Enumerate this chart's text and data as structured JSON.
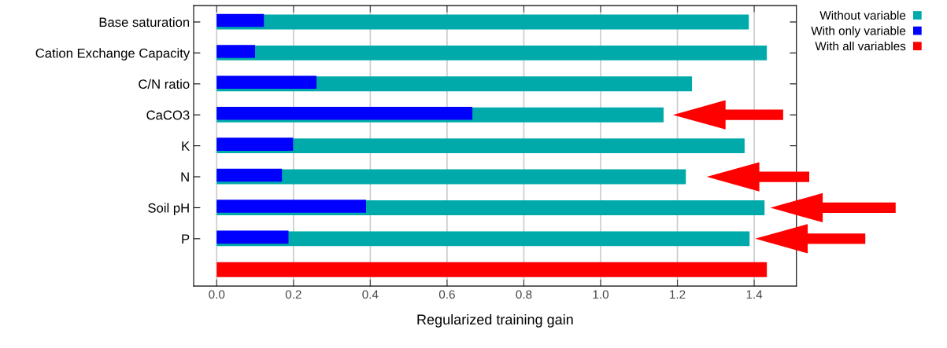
{
  "chart_data": {
    "type": "bar",
    "orientation": "horizontal",
    "xlabel": "Regularized training gain",
    "categories": [
      "Base saturation",
      "Cation Exchange Capacity",
      "C/N ratio",
      "CaCO3",
      "K",
      "N",
      "Soil pH",
      "P",
      null
    ],
    "series": [
      {
        "name": "Without variable",
        "color": "#00aaaa",
        "values": [
          1.386,
          1.433,
          1.238,
          1.164,
          1.375,
          1.222,
          1.427,
          1.388,
          null
        ]
      },
      {
        "name": "With only variable",
        "color": "#0000ff",
        "values": [
          0.123,
          0.1,
          0.26,
          0.666,
          0.199,
          0.17,
          0.389,
          0.187,
          null
        ]
      },
      {
        "name": "With all variables",
        "color": "#ff0000",
        "values": [
          null,
          null,
          null,
          null,
          null,
          null,
          null,
          null,
          1.433
        ]
      }
    ],
    "xlim": [
      -0.06,
      1.51
    ],
    "xticks": [
      {
        "value": 0,
        "label": "0.0"
      },
      {
        "value": 0.2,
        "label": "0.2"
      },
      {
        "value": 0.4,
        "label": "0.4"
      },
      {
        "value": 0.6,
        "label": "0.6"
      },
      {
        "value": 0.8,
        "label": "0.8"
      },
      {
        "value": 1,
        "label": "1.0"
      },
      {
        "value": 1.2,
        "label": "1.2"
      },
      {
        "value": 1.4,
        "label": "1.4"
      }
    ],
    "grid": "x",
    "legend": "top right"
  }
}
